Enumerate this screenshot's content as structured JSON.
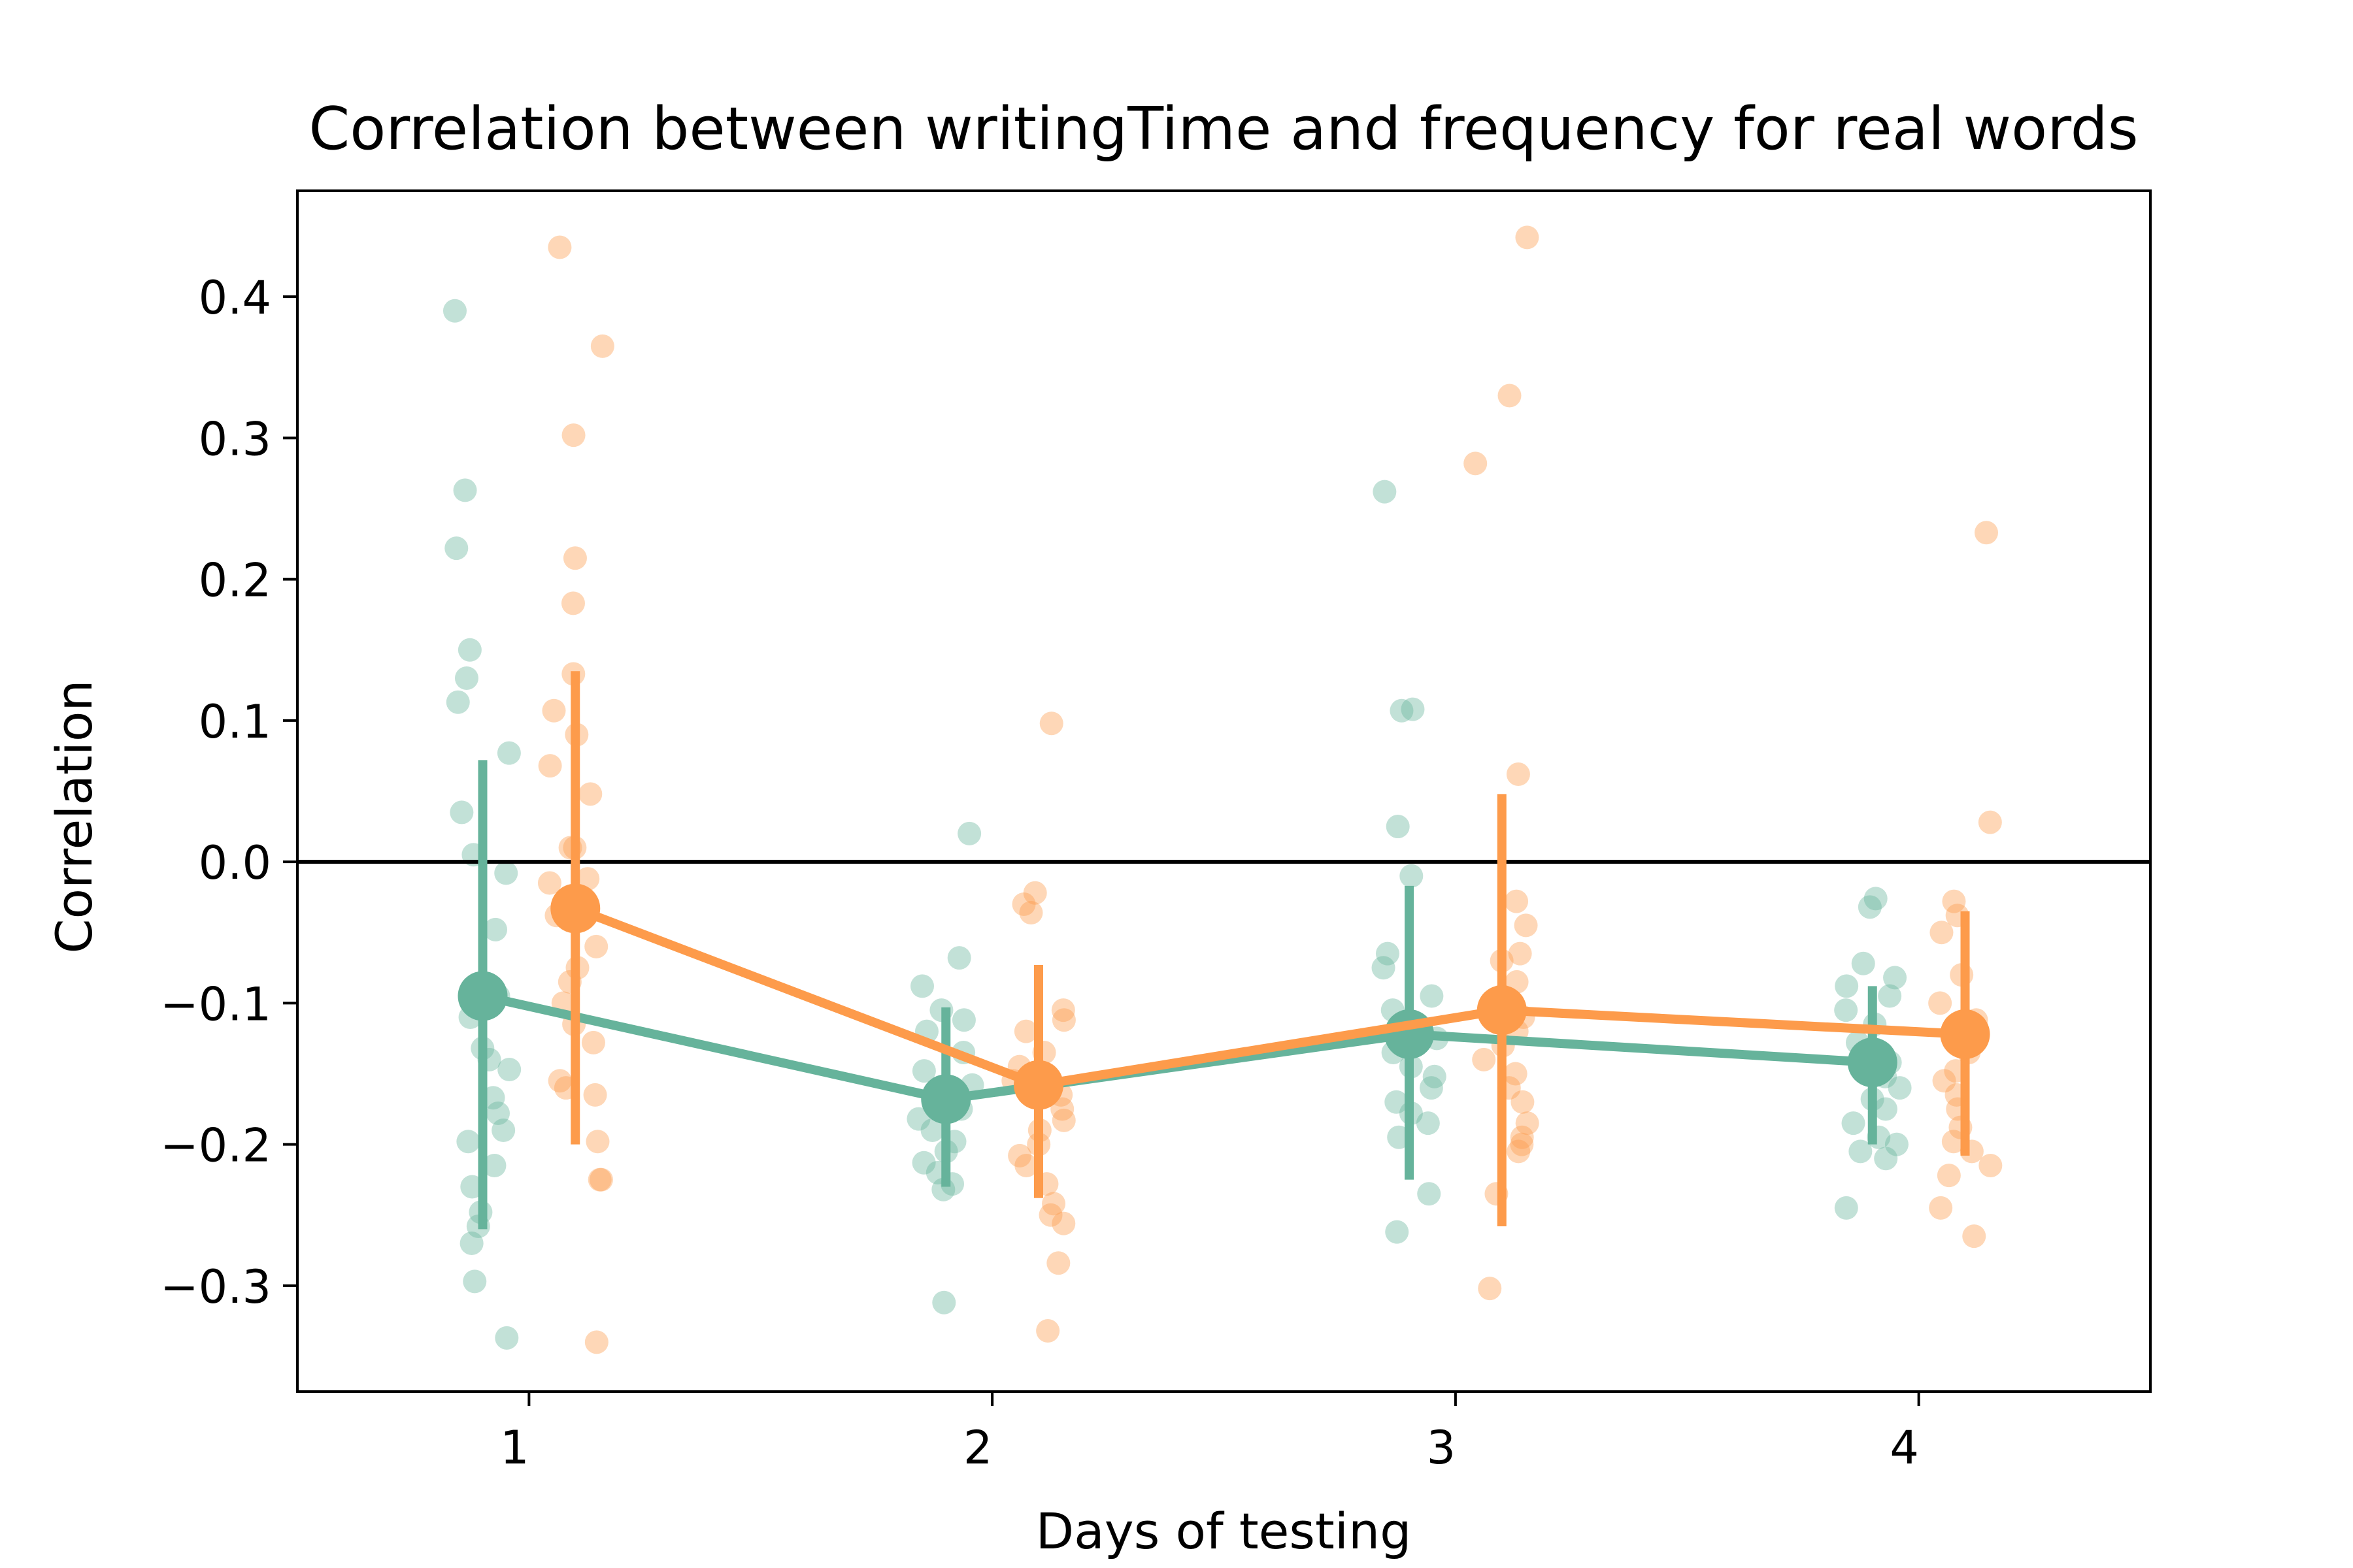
{
  "chart_data": {
    "type": "scatter",
    "title": "Correlation between writingTime and frequency for real words",
    "xlabel": "Days of testing",
    "ylabel": "Correlation",
    "categories": [
      "1",
      "2",
      "3",
      "4"
    ],
    "ylim": [
      -0.375,
      0.475
    ],
    "yticks": [
      0.4,
      0.3,
      0.2,
      0.1,
      0.0,
      -0.1,
      -0.2,
      -0.3
    ],
    "ytick_labels": [
      "0.4",
      "0.3",
      "0.2",
      "0.1",
      "0.0",
      "−0.1",
      "−0.2",
      "−0.3"
    ],
    "reference_line_y": 0.0,
    "grid": false,
    "legend": "none",
    "series": [
      {
        "color": "#66b39b",
        "mean": [
          -0.095,
          -0.168,
          -0.122,
          -0.142
        ],
        "ci_low": [
          -0.26,
          -0.23,
          -0.225,
          -0.2
        ],
        "ci_high": [
          0.072,
          -0.103,
          -0.017,
          -0.088
        ],
        "points": [
          [
            0.39,
            0.263,
            0.222,
            0.15,
            0.13,
            0.113,
            0.077,
            0.035,
            0.005,
            -0.008,
            -0.048,
            -0.095,
            -0.1,
            -0.11,
            -0.132,
            -0.14,
            -0.147,
            -0.167,
            -0.178,
            -0.19,
            -0.198,
            -0.215,
            -0.23,
            -0.248,
            -0.258,
            -0.27,
            -0.297,
            -0.337
          ],
          [
            0.02,
            -0.068,
            -0.088,
            -0.105,
            -0.112,
            -0.12,
            -0.135,
            -0.148,
            -0.158,
            -0.168,
            -0.175,
            -0.182,
            -0.19,
            -0.198,
            -0.205,
            -0.213,
            -0.22,
            -0.228,
            -0.232,
            -0.312
          ],
          [
            0.262,
            0.108,
            0.107,
            0.025,
            -0.01,
            -0.065,
            -0.075,
            -0.095,
            -0.105,
            -0.118,
            -0.125,
            -0.135,
            -0.145,
            -0.152,
            -0.16,
            -0.17,
            -0.178,
            -0.185,
            -0.195,
            -0.235,
            -0.262
          ],
          [
            -0.026,
            -0.032,
            -0.072,
            -0.082,
            -0.088,
            -0.095,
            -0.105,
            -0.115,
            -0.128,
            -0.135,
            -0.142,
            -0.152,
            -0.16,
            -0.168,
            -0.175,
            -0.185,
            -0.195,
            -0.2,
            -0.205,
            -0.21,
            -0.245
          ]
        ]
      },
      {
        "color": "#fd9b4b",
        "mean": [
          -0.033,
          -0.158,
          -0.105,
          -0.122
        ],
        "ci_low": [
          -0.2,
          -0.238,
          -0.258,
          -0.208
        ],
        "ci_high": [
          0.135,
          -0.073,
          0.048,
          -0.035
        ],
        "points": [
          [
            0.435,
            0.365,
            0.302,
            0.215,
            0.183,
            0.133,
            0.107,
            0.09,
            0.068,
            0.048,
            0.01,
            0.01,
            -0.012,
            -0.015,
            -0.038,
            -0.06,
            -0.075,
            -0.085,
            -0.1,
            -0.115,
            -0.128,
            -0.155,
            -0.16,
            -0.165,
            -0.198,
            -0.225,
            -0.225,
            -0.34
          ],
          [
            0.098,
            -0.022,
            -0.03,
            -0.036,
            -0.105,
            -0.112,
            -0.12,
            -0.135,
            -0.145,
            -0.155,
            -0.165,
            -0.175,
            -0.183,
            -0.19,
            -0.2,
            -0.208,
            -0.215,
            -0.228,
            -0.242,
            -0.25,
            -0.256,
            -0.284,
            -0.332
          ],
          [
            0.442,
            0.33,
            0.282,
            0.062,
            -0.028,
            -0.045,
            -0.065,
            -0.07,
            -0.085,
            -0.095,
            -0.11,
            -0.12,
            -0.13,
            -0.14,
            -0.15,
            -0.16,
            -0.17,
            -0.185,
            -0.195,
            -0.2,
            -0.205,
            -0.235,
            -0.302
          ],
          [
            0.233,
            0.028,
            -0.028,
            -0.038,
            -0.05,
            -0.08,
            -0.1,
            -0.112,
            -0.122,
            -0.135,
            -0.148,
            -0.155,
            -0.165,
            -0.175,
            -0.188,
            -0.198,
            -0.205,
            -0.215,
            -0.222,
            -0.245,
            -0.265
          ]
        ]
      }
    ]
  }
}
